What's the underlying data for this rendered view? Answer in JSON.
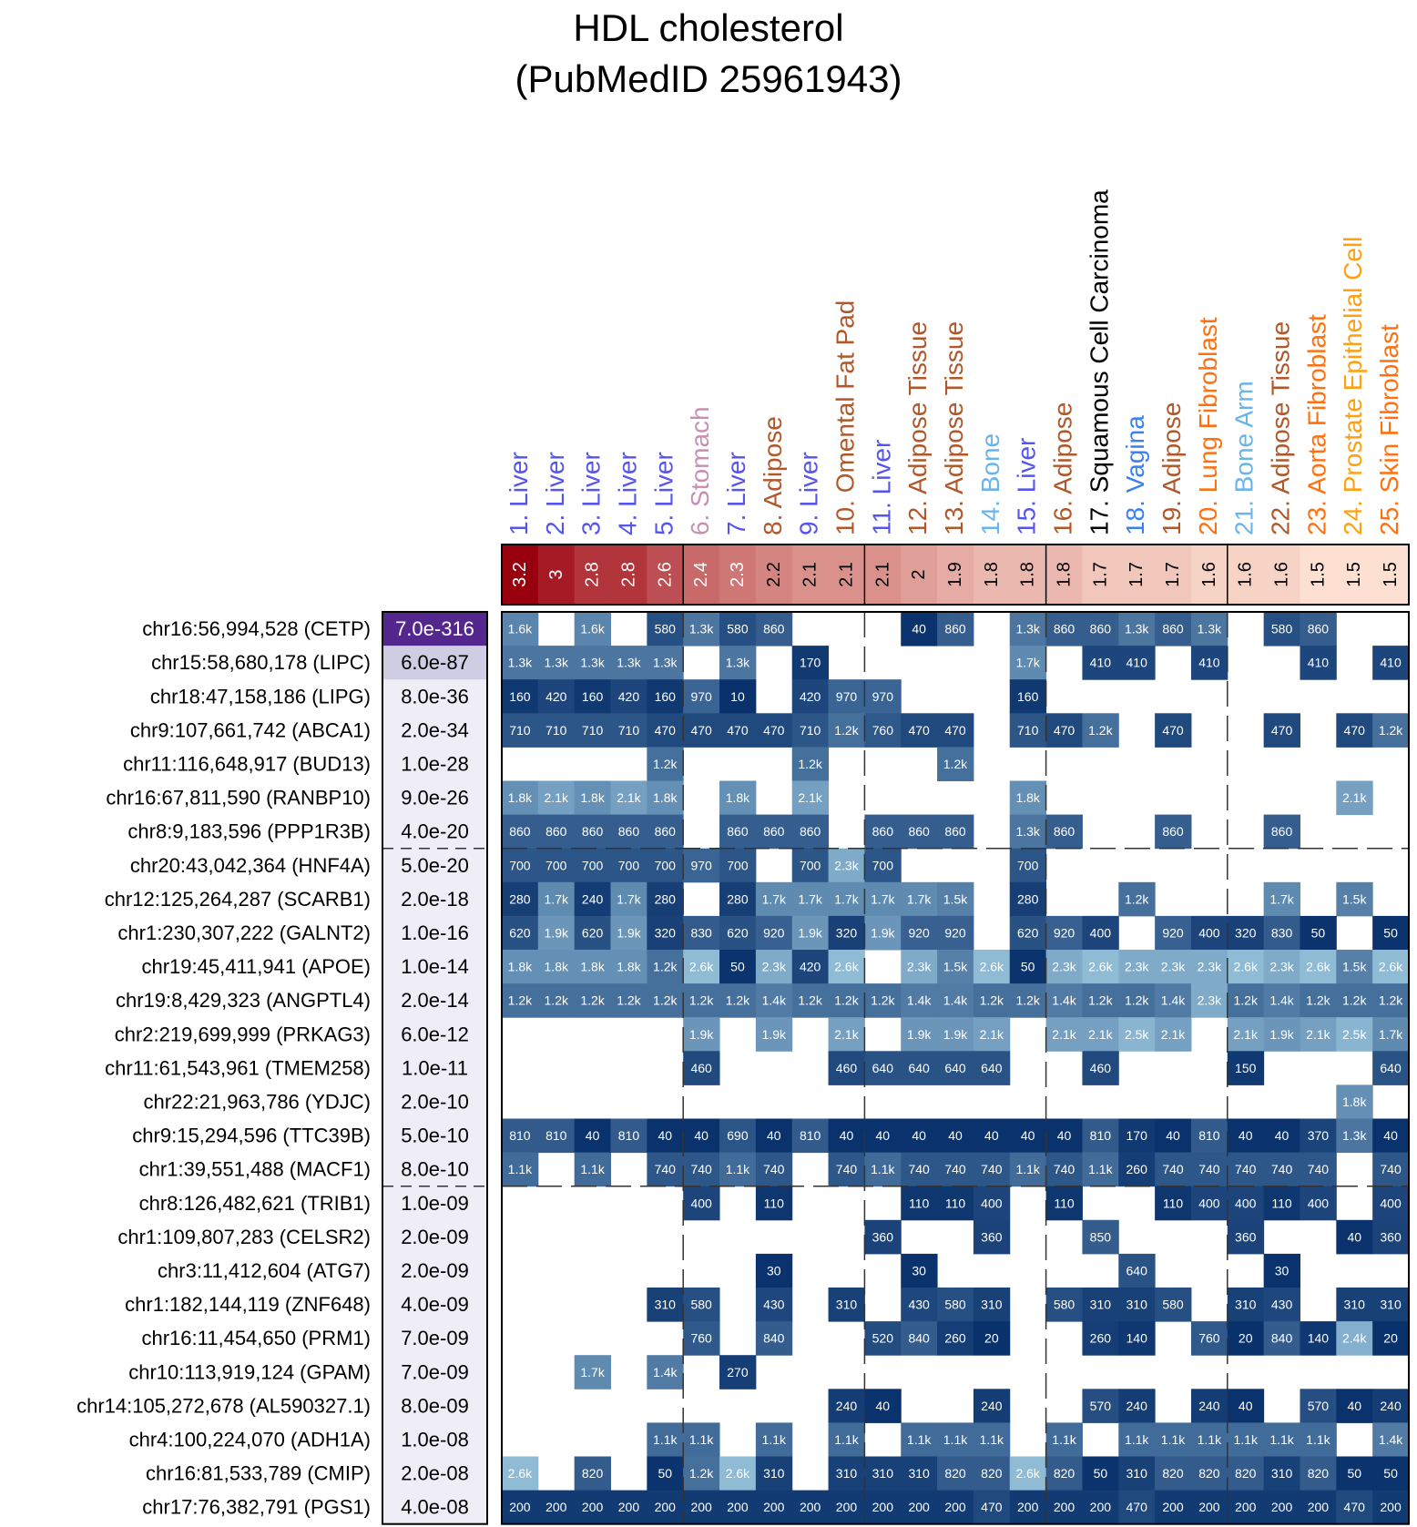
{
  "title": "HDL cholesterol",
  "subtitle": "(PubMedID 25961943)",
  "chart_data": {
    "type": "heatmap",
    "title": "HDL cholesterol (PubMedID 25961943)",
    "columns": [
      {
        "label": "1. Liver",
        "score": "3.2",
        "color": "#5555ee"
      },
      {
        "label": "2. Liver",
        "score": "3",
        "color": "#5555ee"
      },
      {
        "label": "3. Liver",
        "score": "2.8",
        "color": "#5555ee"
      },
      {
        "label": "4. Liver",
        "score": "2.8",
        "color": "#5555ee"
      },
      {
        "label": "5. Liver",
        "score": "2.6",
        "color": "#5555ee"
      },
      {
        "label": "6. Stomach",
        "score": "2.4",
        "color": "#c890b0"
      },
      {
        "label": "7. Liver",
        "score": "2.3",
        "color": "#5555ee"
      },
      {
        "label": "8. Adipose",
        "score": "2.2",
        "color": "#b0582a"
      },
      {
        "label": "9. Liver",
        "score": "2.1",
        "color": "#5555ee"
      },
      {
        "label": "10. Omental Fat Pad",
        "score": "2.1",
        "color": "#b0582a"
      },
      {
        "label": "11. Liver",
        "score": "2.1",
        "color": "#5555ee"
      },
      {
        "label": "12. Adipose Tissue",
        "score": "2",
        "color": "#b0582a"
      },
      {
        "label": "13. Adipose Tissue",
        "score": "1.9",
        "color": "#b0582a"
      },
      {
        "label": "14. Bone",
        "score": "1.8",
        "color": "#6ab4ea"
      },
      {
        "label": "15. Liver",
        "score": "1.8",
        "color": "#5555ee"
      },
      {
        "label": "16. Adipose",
        "score": "1.8",
        "color": "#b0582a"
      },
      {
        "label": "17. Squamous Cell Carcinoma",
        "score": "1.7",
        "color": "#000000"
      },
      {
        "label": "18. Vagina",
        "score": "1.7",
        "color": "#3a80f0"
      },
      {
        "label": "19. Adipose",
        "score": "1.7",
        "color": "#b0582a"
      },
      {
        "label": "20. Lung Fibroblast",
        "score": "1.6",
        "color": "#ff7010"
      },
      {
        "label": "21. Bone Arm",
        "score": "1.6",
        "color": "#6ab4ea"
      },
      {
        "label": "22. Adipose Tissue",
        "score": "1.6",
        "color": "#b0582a"
      },
      {
        "label": "23. Aorta Fibroblast",
        "score": "1.5",
        "color": "#ff7010"
      },
      {
        "label": "24. Prostate Epithelial Cell",
        "score": "1.5",
        "color": "#ffa010"
      },
      {
        "label": "25. Skin Fibroblast",
        "score": "1.5",
        "color": "#ff7010"
      }
    ],
    "rows": [
      {
        "label": "chr16:56,994,528 (CETP)",
        "pvalue": "7.0e-316",
        "cells": [
          "1.6k",
          "",
          "1.6k",
          "",
          "580",
          "1.3k",
          "580",
          "860",
          "",
          "",
          "",
          "40",
          "860",
          "",
          "1.3k",
          "860",
          "860",
          "1.3k",
          "860",
          "1.3k",
          "",
          "580",
          "860",
          "",
          ""
        ]
      },
      {
        "label": "chr15:58,680,178 (LIPC)",
        "pvalue": "6.0e-87",
        "cells": [
          "1.3k",
          "1.3k",
          "1.3k",
          "1.3k",
          "1.3k",
          "",
          "1.3k",
          "",
          "170",
          "",
          "",
          "",
          "",
          "",
          "1.7k",
          "",
          "410",
          "410",
          "",
          "410",
          "",
          "",
          "410",
          "",
          "410"
        ]
      },
      {
        "label": "chr18:47,158,186 (LIPG)",
        "pvalue": "8.0e-36",
        "cells": [
          "160",
          "420",
          "160",
          "420",
          "160",
          "970",
          "10",
          "",
          "420",
          "970",
          "970",
          "",
          "",
          "",
          "160",
          "",
          "",
          "",
          "",
          "",
          "",
          "",
          "",
          "",
          ""
        ]
      },
      {
        "label": "chr9:107,661,742 (ABCA1)",
        "pvalue": "2.0e-34",
        "cells": [
          "710",
          "710",
          "710",
          "710",
          "470",
          "470",
          "470",
          "470",
          "710",
          "1.2k",
          "760",
          "470",
          "470",
          "",
          "710",
          "470",
          "1.2k",
          "",
          "470",
          "",
          "",
          "470",
          "",
          "470",
          "1.2k"
        ]
      },
      {
        "label": "chr11:116,648,917 (BUD13)",
        "pvalue": "1.0e-28",
        "cells": [
          "",
          "",
          "",
          "",
          "1.2k",
          "",
          "",
          "",
          "1.2k",
          "",
          "",
          "",
          "1.2k",
          "",
          "",
          "",
          "",
          "",
          "",
          "",
          "",
          "",
          "",
          "",
          ""
        ]
      },
      {
        "label": "chr16:67,811,590 (RANBP10)",
        "pvalue": "9.0e-26",
        "cells": [
          "1.8k",
          "2.1k",
          "1.8k",
          "2.1k",
          "1.8k",
          "",
          "1.8k",
          "",
          "2.1k",
          "",
          "",
          "",
          "",
          "",
          "1.8k",
          "",
          "",
          "",
          "",
          "",
          "",
          "",
          "",
          "2.1k",
          ""
        ]
      },
      {
        "label": "chr8:9,183,596 (PPP1R3B)",
        "pvalue": "4.0e-20",
        "cells": [
          "860",
          "860",
          "860",
          "860",
          "860",
          "",
          "860",
          "860",
          "860",
          "",
          "860",
          "860",
          "860",
          "",
          "1.3k",
          "860",
          "",
          "",
          "860",
          "",
          "",
          "860",
          "",
          "",
          ""
        ]
      },
      {
        "label": "chr20:43,042,364 (HNF4A)",
        "pvalue": "5.0e-20",
        "cells": [
          "700",
          "700",
          "700",
          "700",
          "700",
          "970",
          "700",
          "",
          "700",
          "2.3k",
          "700",
          "",
          "",
          "",
          "700",
          "",
          "",
          "",
          "",
          "",
          "",
          "",
          "",
          "",
          ""
        ]
      },
      {
        "label": "chr12:125,264,287 (SCARB1)",
        "pvalue": "2.0e-18",
        "cells": [
          "280",
          "1.7k",
          "240",
          "1.7k",
          "280",
          "",
          "280",
          "1.7k",
          "1.7k",
          "1.7k",
          "1.7k",
          "1.7k",
          "1.5k",
          "",
          "280",
          "",
          "",
          "1.2k",
          "",
          "",
          "",
          "1.7k",
          "",
          "1.5k",
          ""
        ]
      },
      {
        "label": "chr1:230,307,222 (GALNT2)",
        "pvalue": "1.0e-16",
        "cells": [
          "620",
          "1.9k",
          "620",
          "1.9k",
          "320",
          "830",
          "620",
          "920",
          "1.9k",
          "320",
          "1.9k",
          "920",
          "920",
          "",
          "620",
          "920",
          "400",
          "",
          "920",
          "400",
          "320",
          "830",
          "50",
          "",
          "50"
        ]
      },
      {
        "label": "chr19:45,411,941 (APOE)",
        "pvalue": "1.0e-14",
        "cells": [
          "1.8k",
          "1.8k",
          "1.8k",
          "1.8k",
          "1.2k",
          "2.6k",
          "50",
          "2.3k",
          "420",
          "2.6k",
          "",
          "2.3k",
          "1.5k",
          "2.6k",
          "50",
          "2.3k",
          "2.6k",
          "2.3k",
          "2.3k",
          "2.3k",
          "2.6k",
          "2.3k",
          "2.6k",
          "1.5k",
          "2.6k"
        ]
      },
      {
        "label": "chr19:8,429,323 (ANGPTL4)",
        "pvalue": "2.0e-14",
        "cells": [
          "1.2k",
          "1.2k",
          "1.2k",
          "1.2k",
          "1.2k",
          "1.2k",
          "1.2k",
          "1.4k",
          "1.2k",
          "1.2k",
          "1.2k",
          "1.4k",
          "1.4k",
          "1.2k",
          "1.2k",
          "1.4k",
          "1.2k",
          "1.2k",
          "1.4k",
          "2.3k",
          "1.2k",
          "1.4k",
          "1.2k",
          "1.2k",
          "1.2k"
        ]
      },
      {
        "label": "chr2:219,699,999 (PRKAG3)",
        "pvalue": "6.0e-12",
        "cells": [
          "",
          "",
          "",
          "",
          "",
          "1.9k",
          "",
          "1.9k",
          "",
          "2.1k",
          "",
          "1.9k",
          "1.9k",
          "2.1k",
          "",
          "2.1k",
          "2.1k",
          "2.5k",
          "2.1k",
          "",
          "2.1k",
          "1.9k",
          "2.1k",
          "2.5k",
          "1.7k"
        ]
      },
      {
        "label": "chr11:61,543,961 (TMEM258)",
        "pvalue": "1.0e-11",
        "cells": [
          "",
          "",
          "",
          "",
          "",
          "460",
          "",
          "",
          "",
          "460",
          "640",
          "640",
          "640",
          "640",
          "",
          "",
          "460",
          "",
          "",
          "",
          "150",
          "",
          "",
          "",
          "640"
        ]
      },
      {
        "label": "chr22:21,963,786 (YDJC)",
        "pvalue": "2.0e-10",
        "cells": [
          "",
          "",
          "",
          "",
          "",
          "",
          "",
          "",
          "",
          "",
          "",
          "",
          "",
          "",
          "",
          "",
          "",
          "",
          "",
          "",
          "",
          "",
          "",
          "1.8k",
          ""
        ]
      },
      {
        "label": "chr9:15,294,596 (TTC39B)",
        "pvalue": "5.0e-10",
        "cells": [
          "810",
          "810",
          "40",
          "810",
          "40",
          "40",
          "690",
          "40",
          "810",
          "40",
          "40",
          "40",
          "40",
          "40",
          "40",
          "40",
          "810",
          "170",
          "40",
          "810",
          "40",
          "40",
          "370",
          "1.3k",
          "40"
        ]
      },
      {
        "label": "chr1:39,551,488 (MACF1)",
        "pvalue": "8.0e-10",
        "cells": [
          "1.1k",
          "",
          "1.1k",
          "",
          "740",
          "740",
          "1.1k",
          "740",
          "",
          "740",
          "1.1k",
          "740",
          "740",
          "740",
          "1.1k",
          "740",
          "1.1k",
          "260",
          "740",
          "740",
          "740",
          "740",
          "740",
          "",
          "740"
        ]
      },
      {
        "label": "chr8:126,482,621 (TRIB1)",
        "pvalue": "1.0e-09",
        "cells": [
          "",
          "",
          "",
          "",
          "",
          "400",
          "",
          "110",
          "",
          "",
          "",
          "110",
          "110",
          "400",
          "",
          "110",
          "",
          "",
          "110",
          "400",
          "400",
          "110",
          "400",
          "",
          "400"
        ]
      },
      {
        "label": "chr1:109,807,283 (CELSR2)",
        "pvalue": "2.0e-09",
        "cells": [
          "",
          "",
          "",
          "",
          "",
          "",
          "",
          "",
          "",
          "",
          "360",
          "",
          "",
          "360",
          "",
          "",
          "850",
          "",
          "",
          "",
          "360",
          "",
          "",
          "40",
          "360"
        ]
      },
      {
        "label": "chr3:11,412,604 (ATG7)",
        "pvalue": "2.0e-09",
        "cells": [
          "",
          "",
          "",
          "",
          "",
          "",
          "",
          "30",
          "",
          "",
          "",
          "30",
          "",
          "",
          "",
          "",
          "",
          "640",
          "",
          "",
          "",
          "30",
          "",
          "",
          ""
        ]
      },
      {
        "label": "chr1:182,144,119 (ZNF648)",
        "pvalue": "4.0e-09",
        "cells": [
          "",
          "",
          "",
          "",
          "310",
          "580",
          "",
          "430",
          "",
          "310",
          "",
          "430",
          "580",
          "310",
          "",
          "580",
          "310",
          "310",
          "580",
          "",
          "310",
          "430",
          "",
          "310",
          "310"
        ]
      },
      {
        "label": "chr16:11,454,650 (PRM1)",
        "pvalue": "7.0e-09",
        "cells": [
          "",
          "",
          "",
          "",
          "",
          "760",
          "",
          "840",
          "",
          "",
          "520",
          "840",
          "260",
          "20",
          "",
          "",
          "260",
          "140",
          "",
          "760",
          "20",
          "840",
          "140",
          "2.4k",
          "20"
        ]
      },
      {
        "label": "chr10:113,919,124 (GPAM)",
        "pvalue": "7.0e-09",
        "cells": [
          "",
          "",
          "1.7k",
          "",
          "1.4k",
          "",
          "270",
          "",
          "",
          "",
          "",
          "",
          "",
          "",
          "",
          "",
          "",
          "",
          "",
          "",
          "",
          "",
          "",
          "",
          ""
        ]
      },
      {
        "label": "chr14:105,272,678 (AL590327.1)",
        "pvalue": "8.0e-09",
        "cells": [
          "",
          "",
          "",
          "",
          "",
          "",
          "",
          "",
          "",
          "240",
          "40",
          "",
          "",
          "240",
          "",
          "",
          "570",
          "240",
          "",
          "240",
          "40",
          "",
          "570",
          "40",
          "240"
        ]
      },
      {
        "label": "chr4:100,224,070 (ADH1A)",
        "pvalue": "1.0e-08",
        "cells": [
          "",
          "",
          "",
          "",
          "1.1k",
          "1.1k",
          "",
          "1.1k",
          "",
          "1.1k",
          "",
          "1.1k",
          "1.1k",
          "1.1k",
          "",
          "1.1k",
          "",
          "1.1k",
          "1.1k",
          "1.1k",
          "1.1k",
          "1.1k",
          "1.1k",
          "",
          "1.4k"
        ]
      },
      {
        "label": "chr16:81,533,789 (CMIP)",
        "pvalue": "2.0e-08",
        "cells": [
          "2.6k",
          "",
          "820",
          "",
          "50",
          "1.2k",
          "2.6k",
          "310",
          "",
          "310",
          "310",
          "310",
          "820",
          "820",
          "2.6k",
          "820",
          "50",
          "310",
          "820",
          "820",
          "820",
          "310",
          "820",
          "50",
          "50"
        ]
      },
      {
        "label": "chr17:76,382,791 (PGS1)",
        "pvalue": "4.0e-08",
        "cells": [
          "200",
          "200",
          "200",
          "200",
          "200",
          "200",
          "200",
          "200",
          "200",
          "200",
          "200",
          "200",
          "200",
          "470",
          "200",
          "200",
          "200",
          "470",
          "200",
          "200",
          "200",
          "200",
          "200",
          "470",
          "200"
        ]
      }
    ],
    "column_separators_after": [
      5,
      10,
      15,
      20
    ],
    "row_separators_after": [
      7,
      17
    ],
    "score_color_range": [
      "#fde0d2",
      "#99000d"
    ],
    "cell_color_range": [
      "#9ecae1",
      "#08306b"
    ],
    "pvalue_highlight": {
      "strong": "#54278f",
      "moderate": "#cfcde4",
      "weak": "#efedf5"
    }
  }
}
